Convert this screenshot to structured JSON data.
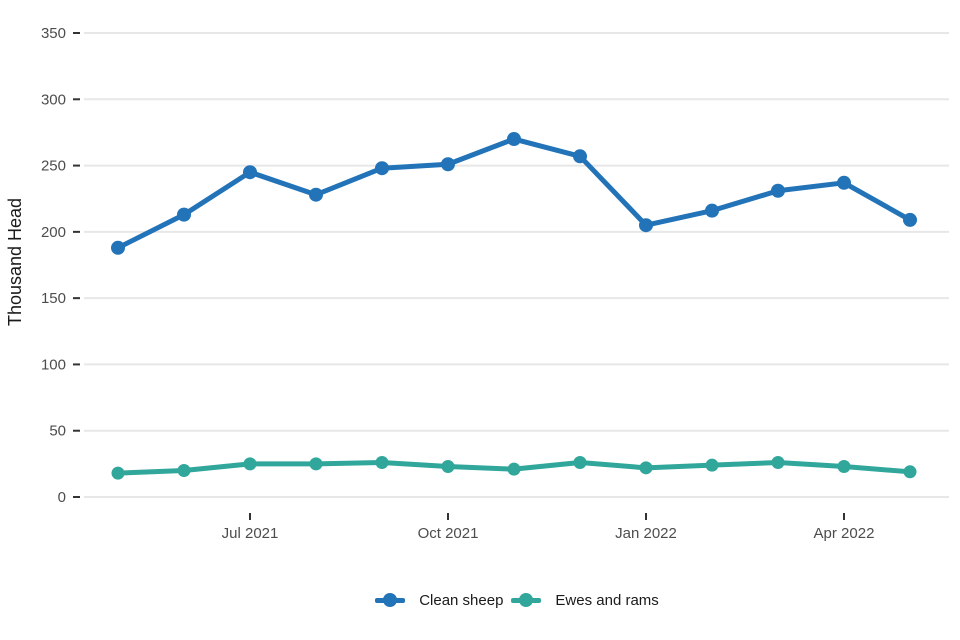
{
  "chart_data": {
    "type": "line",
    "title": "",
    "xlabel": "",
    "ylabel": "Thousand Head",
    "ylim": [
      0,
      350
    ],
    "y_ticks": [
      0,
      50,
      100,
      150,
      200,
      250,
      300,
      350
    ],
    "x_ticks": [
      {
        "label": "Jul 2021",
        "index": 2
      },
      {
        "label": "Oct 2021",
        "index": 5
      },
      {
        "label": "Jan 2022",
        "index": 8
      },
      {
        "label": "Apr 2022",
        "index": 11
      }
    ],
    "n_points": 13,
    "grid": "horizontal-major-only",
    "legend_position": "bottom-center",
    "colors": {
      "grid": "#e7e7e7",
      "tick_text": "#4d4d4d",
      "axis_title_text": "#1a1a1a",
      "background": "#ffffff"
    },
    "series": [
      {
        "name": "Clean sheep",
        "color": "#2273b8",
        "values": [
          188,
          213,
          245,
          228,
          248,
          251,
          270,
          257,
          205,
          216,
          231,
          237,
          209
        ]
      },
      {
        "name": "Ewes and rams",
        "color": "#31a79c",
        "values": [
          18,
          20,
          25,
          25,
          26,
          23,
          21,
          26,
          22,
          24,
          26,
          23,
          19
        ]
      }
    ]
  }
}
